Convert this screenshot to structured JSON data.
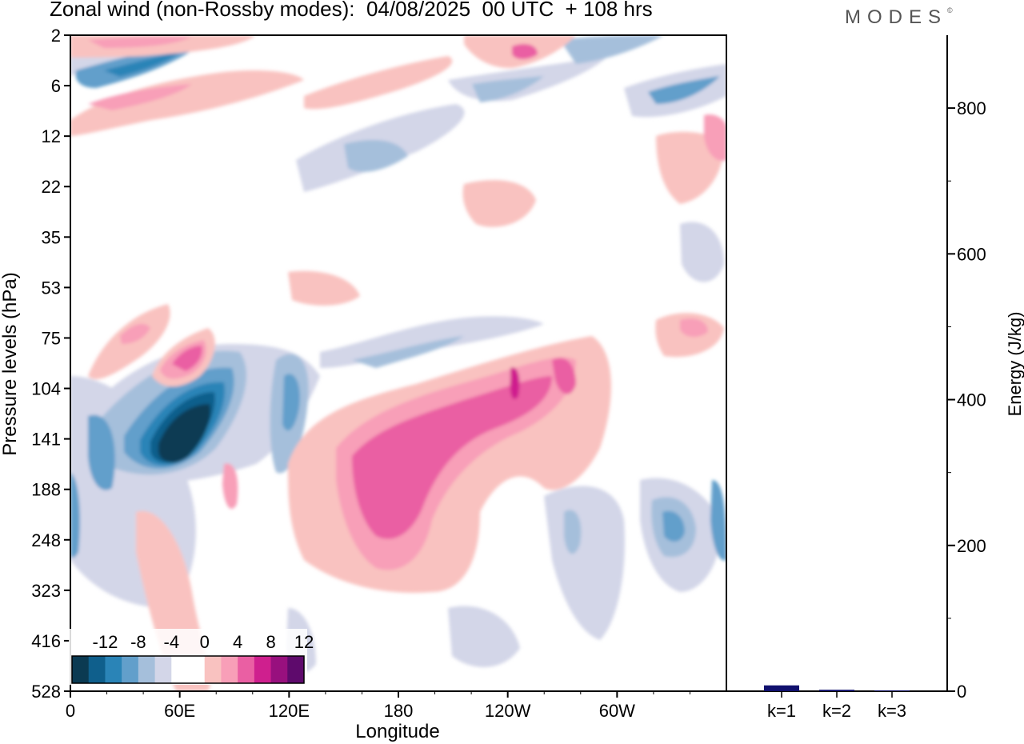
{
  "title": "Zonal wind (non-Rossby modes):  04/08/2025  00 UTC  + 108 hrs",
  "logo": "MODES",
  "logo_mark": "©",
  "chart_data": [
    {
      "type": "heatmap",
      "xlabel": "Longitude",
      "ylabel": "Pressure levels (hPa)",
      "x_ticks": [
        "0",
        "60E",
        "120E",
        "180",
        "120W",
        "60W"
      ],
      "y_ticks": [
        "2",
        "6",
        "12",
        "22",
        "35",
        "53",
        "75",
        "104",
        "141",
        "188",
        "248",
        "323",
        "416",
        "528"
      ],
      "colorbar": {
        "labels": [
          "-12",
          "-8",
          "-4",
          "0",
          "4",
          "8",
          "12"
        ],
        "colors": [
          "#0b3a52",
          "#0f5f8c",
          "#2a84b7",
          "#629fcb",
          "#a5bfdb",
          "#d3d6e8",
          "#ffffff",
          "#ffffff",
          "#f9c2c0",
          "#f89fb8",
          "#ea5fa3",
          "#cf1f8e",
          "#98107e",
          "#5e0a6c"
        ]
      },
      "features": [
        {
          "sign": "negative",
          "center": [
            "70E",
            "141"
          ],
          "peak": "< -12"
        },
        {
          "sign": "positive",
          "center": [
            "125W",
            "104"
          ],
          "peak": "12"
        },
        {
          "sign": "positive",
          "center": [
            "165E",
            "188"
          ],
          "peak": "8"
        },
        {
          "sign": "negative",
          "center": [
            "10E",
            "6"
          ],
          "peak": "-8"
        },
        {
          "sign": "positive",
          "center": [
            "65E",
            "90"
          ],
          "peak": "8"
        },
        {
          "sign": "negative",
          "center": [
            "35W",
            "248"
          ],
          "peak": "-8"
        }
      ]
    },
    {
      "type": "bar",
      "ylabel": "Energy (J/kg)",
      "ylim": [
        0,
        900
      ],
      "y_ticks": [
        "0",
        "200",
        "400",
        "600",
        "800"
      ],
      "categories": [
        "k=1",
        "k=2",
        "k=3"
      ],
      "values": [
        8,
        2,
        1
      ],
      "color": "#10106e"
    }
  ]
}
